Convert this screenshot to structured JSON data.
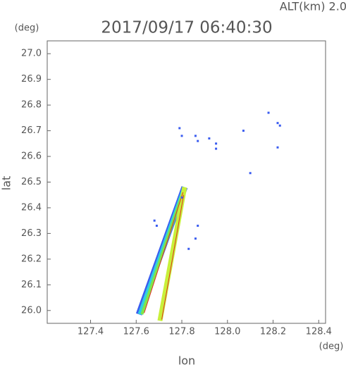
{
  "chart_data": {
    "type": "scatter",
    "title": "2017/09/17 06:40:30",
    "subtitle": "ALT(km)  2.0",
    "xlabel": "lon",
    "ylabel": "lat",
    "xunit": "(deg)",
    "yunit": "(deg)",
    "xlim": [
      127.21,
      128.43
    ],
    "ylim": [
      25.95,
      27.05
    ],
    "xticks": [
      127.4,
      127.6,
      127.8,
      {
        "value": 128.0,
        "label": "128.0"
      },
      128.2,
      128.4
    ],
    "yticks": [
      {
        "value": 26.0,
        "label": "26.0"
      },
      26.1,
      26.2,
      26.3,
      26.4,
      26.5,
      26.6,
      26.7,
      26.8,
      26.9,
      {
        "value": 27.0,
        "label": "27.0"
      }
    ],
    "series": [
      {
        "style": "line",
        "color": "#3a5cf0",
        "width": 9,
        "x": [
          127.612,
          127.812
        ],
        "values": [
          25.985,
          26.48
        ]
      },
      {
        "style": "line",
        "color": "#30d0e0",
        "width": 6,
        "x": [
          127.616,
          127.812
        ],
        "values": [
          25.985,
          26.48
        ]
      },
      {
        "style": "line",
        "color": "#7ee64a",
        "width": 4,
        "x": [
          127.625,
          127.812
        ],
        "values": [
          25.985,
          26.48
        ]
      },
      {
        "style": "line",
        "color": "#c8f03a",
        "width": 7,
        "x": [
          127.704,
          127.812
        ],
        "values": [
          25.96,
          26.48
        ]
      },
      {
        "style": "line",
        "color": "#e03020",
        "width": 1,
        "x": [
          127.635,
          127.805
        ],
        "values": [
          25.99,
          26.46
        ]
      },
      {
        "style": "line",
        "color": "#e03020",
        "width": 1,
        "x": [
          127.712,
          127.808
        ],
        "values": [
          25.965,
          26.45
        ]
      },
      {
        "style": "points",
        "color": "#3a5cf0",
        "size": 3,
        "x": [
          127.79,
          127.8,
          127.86,
          127.87,
          127.92,
          127.95,
          127.95,
          128.07,
          128.18,
          128.22,
          128.23,
          128.22,
          127.68,
          127.69,
          127.87,
          127.86,
          127.83,
          127.8,
          128.1
        ],
        "values": [
          26.71,
          26.68,
          26.68,
          26.66,
          26.67,
          26.65,
          26.63,
          26.7,
          26.77,
          26.73,
          26.72,
          26.635,
          26.35,
          26.33,
          26.33,
          26.28,
          26.24,
          26.44,
          26.535
        ]
      }
    ]
  }
}
